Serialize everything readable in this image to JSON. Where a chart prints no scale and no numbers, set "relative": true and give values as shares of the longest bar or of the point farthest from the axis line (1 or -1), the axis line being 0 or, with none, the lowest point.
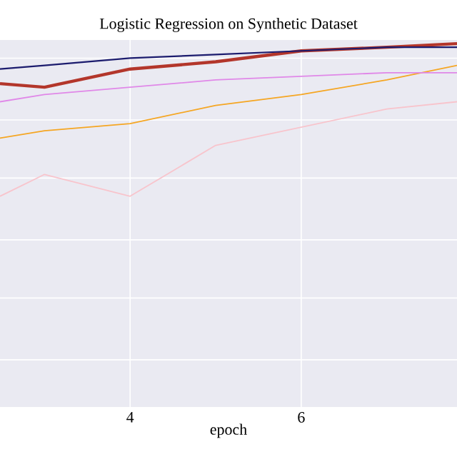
{
  "chart_data": {
    "type": "line",
    "title": "Logistic Regression on Synthetic Dataset",
    "xlabel": "epoch",
    "x": [
      2.48,
      3,
      4,
      5,
      6,
      7,
      7.82
    ],
    "xlim": [
      2.48,
      7.82
    ],
    "xticks": [
      4,
      6
    ],
    "relative": true,
    "grid": true,
    "tick_labels": "x",
    "marker": "none",
    "line_style": "solid",
    "series": [
      {
        "color": "#1c1c6e",
        "values": [
          0.93,
          0.94,
          0.96,
          0.97,
          0.98,
          0.99,
          0.99
        ]
      },
      {
        "color": "#b3362b",
        "values": [
          0.89,
          0.88,
          0.93,
          0.95,
          0.98,
          0.99,
          1
        ]
      },
      {
        "color": "#e088e8",
        "values": [
          0.84,
          0.86,
          0.88,
          0.9,
          0.91,
          0.92,
          0.92
        ]
      },
      {
        "color": "#f5a623",
        "values": [
          0.74,
          0.76,
          0.78,
          0.83,
          0.86,
          0.9,
          0.94
        ]
      },
      {
        "color": "#f8c4cc",
        "values": [
          0.58,
          0.64,
          0.58,
          0.72,
          0.77,
          0.82,
          0.84
        ]
      }
    ]
  }
}
